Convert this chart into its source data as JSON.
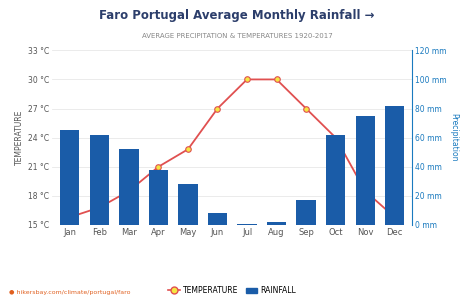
{
  "months": [
    "Jan",
    "Feb",
    "Mar",
    "Apr",
    "May",
    "Jun",
    "Jul",
    "Aug",
    "Sep",
    "Oct",
    "Nov",
    "Dec"
  ],
  "rainfall_mm": [
    65,
    62,
    52,
    38,
    28,
    8,
    1,
    2,
    17,
    62,
    75,
    82
  ],
  "temperature_c": [
    15.8,
    16.8,
    18.5,
    21.0,
    22.8,
    27.0,
    30.0,
    30.0,
    27.0,
    24.0,
    18.5,
    15.8
  ],
  "bar_color": "#1a5ca8",
  "line_color": "#e05050",
  "marker_face_color": "#f5e642",
  "marker_edge_color": "#e05050",
  "title": "Faro Portugal Average Monthly Rainfall →",
  "subtitle": "AVERAGE PRECIPITATION & TEMPERATURES 1920-2017",
  "ylabel_left": "TEMPERATURE",
  "ylabel_right": "Precipitation",
  "ylim_left": [
    15,
    33
  ],
  "ylim_right": [
    0,
    120
  ],
  "yticks_left": [
    15,
    18,
    21,
    24,
    27,
    30,
    33
  ],
  "yticks_right": [
    0,
    20,
    40,
    60,
    80,
    100,
    120
  ],
  "ytick_labels_left": [
    "15 °C",
    "18 °C",
    "21 °C",
    "24 °C",
    "27 °C",
    "30 °C",
    "33 °C"
  ],
  "ytick_labels_right": [
    "0 mm",
    "20 mm",
    "40 mm",
    "60 mm",
    "80 mm",
    "100 mm",
    "120 mm"
  ],
  "background_color": "#ffffff",
  "footer_text": "● hikersbay.com/climate/portugal/faro",
  "legend_temp": "TEMPERATURE",
  "legend_rain": "RAINFALL",
  "title_color": "#2c3e6b",
  "subtitle_color": "#888888",
  "axis_color": "#555555",
  "grid_color": "#e8e8e8",
  "right_axis_color": "#1a7abf"
}
